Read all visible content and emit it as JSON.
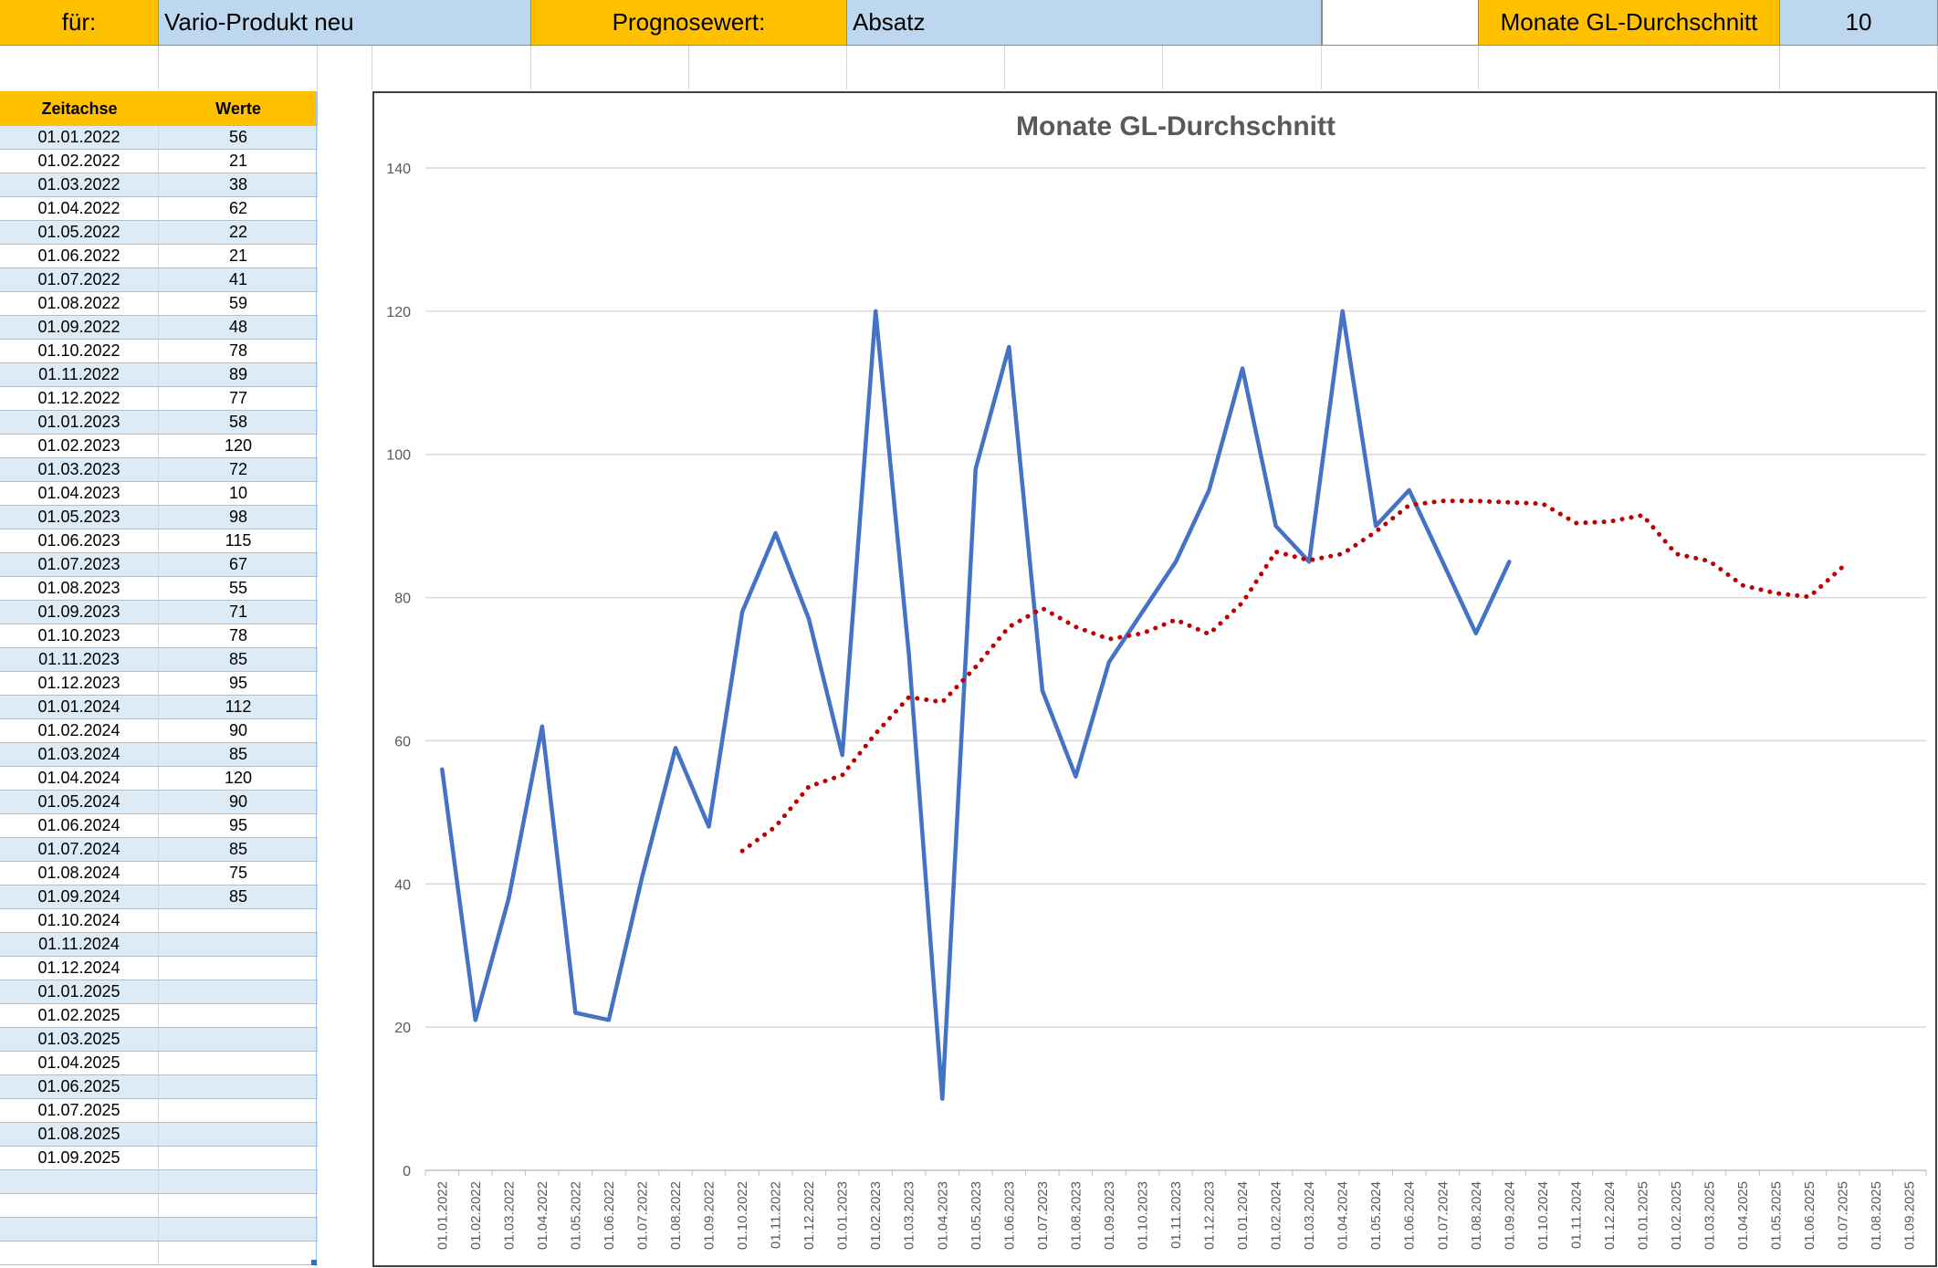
{
  "header": {
    "fuer_label": "für:",
    "product_value": "Vario-Produkt neu",
    "prognose_label": "Prognosewert:",
    "prognose_value": "Absatz",
    "months_label": "Monate GL-Durchschnitt",
    "months_value": "10"
  },
  "table": {
    "col_time": "Zeitachse",
    "col_values": "Werte",
    "rows": [
      {
        "date": "01.01.2022",
        "value": "56"
      },
      {
        "date": "01.02.2022",
        "value": "21"
      },
      {
        "date": "01.03.2022",
        "value": "38"
      },
      {
        "date": "01.04.2022",
        "value": "62"
      },
      {
        "date": "01.05.2022",
        "value": "22"
      },
      {
        "date": "01.06.2022",
        "value": "21"
      },
      {
        "date": "01.07.2022",
        "value": "41"
      },
      {
        "date": "01.08.2022",
        "value": "59"
      },
      {
        "date": "01.09.2022",
        "value": "48"
      },
      {
        "date": "01.10.2022",
        "value": "78"
      },
      {
        "date": "01.11.2022",
        "value": "89"
      },
      {
        "date": "01.12.2022",
        "value": "77"
      },
      {
        "date": "01.01.2023",
        "value": "58"
      },
      {
        "date": "01.02.2023",
        "value": "120"
      },
      {
        "date": "01.03.2023",
        "value": "72"
      },
      {
        "date": "01.04.2023",
        "value": "10"
      },
      {
        "date": "01.05.2023",
        "value": "98"
      },
      {
        "date": "01.06.2023",
        "value": "115"
      },
      {
        "date": "01.07.2023",
        "value": "67"
      },
      {
        "date": "01.08.2023",
        "value": "55"
      },
      {
        "date": "01.09.2023",
        "value": "71"
      },
      {
        "date": "01.10.2023",
        "value": "78"
      },
      {
        "date": "01.11.2023",
        "value": "85"
      },
      {
        "date": "01.12.2023",
        "value": "95"
      },
      {
        "date": "01.01.2024",
        "value": "112"
      },
      {
        "date": "01.02.2024",
        "value": "90"
      },
      {
        "date": "01.03.2024",
        "value": "85"
      },
      {
        "date": "01.04.2024",
        "value": "120"
      },
      {
        "date": "01.05.2024",
        "value": "90"
      },
      {
        "date": "01.06.2024",
        "value": "95"
      },
      {
        "date": "01.07.2024",
        "value": "85"
      },
      {
        "date": "01.08.2024",
        "value": "75"
      },
      {
        "date": "01.09.2024",
        "value": "85"
      },
      {
        "date": "01.10.2024",
        "value": ""
      },
      {
        "date": "01.11.2024",
        "value": ""
      },
      {
        "date": "01.12.2024",
        "value": ""
      },
      {
        "date": "01.01.2025",
        "value": ""
      },
      {
        "date": "01.02.2025",
        "value": ""
      },
      {
        "date": "01.03.2025",
        "value": ""
      },
      {
        "date": "01.04.2025",
        "value": ""
      },
      {
        "date": "01.06.2025",
        "value": ""
      },
      {
        "date": "01.07.2025",
        "value": ""
      },
      {
        "date": "01.08.2025",
        "value": ""
      },
      {
        "date": "01.09.2025",
        "value": ""
      },
      {
        "date": "",
        "value": ""
      },
      {
        "date": "",
        "value": ""
      },
      {
        "date": "",
        "value": ""
      },
      {
        "date": "",
        "value": ""
      }
    ]
  },
  "colors": {
    "header_orange": "#FFC000",
    "header_blue": "#BDD7EE",
    "row_band": "#DDEBF7",
    "series_line": "#4472C4",
    "trend_line": "#C00000",
    "gridline": "#D9D9D9",
    "axis_text": "#595959"
  },
  "chart_data": {
    "type": "line",
    "title": "Monate GL-Durchschnitt",
    "xlabel": "",
    "ylabel": "",
    "ylim": [
      0,
      140
    ],
    "yticks": [
      "0",
      "20",
      "40",
      "60",
      "80",
      "100",
      "120",
      "140"
    ],
    "grid": true,
    "legend": "none",
    "categories": [
      "01.01.2022",
      "01.02.2022",
      "01.03.2022",
      "01.04.2022",
      "01.05.2022",
      "01.06.2022",
      "01.07.2022",
      "01.08.2022",
      "01.09.2022",
      "01.10.2022",
      "01.11.2022",
      "01.12.2022",
      "01.01.2023",
      "01.02.2023",
      "01.03.2023",
      "01.04.2023",
      "01.05.2023",
      "01.06.2023",
      "01.07.2023",
      "01.08.2023",
      "01.09.2023",
      "01.10.2023",
      "01.11.2023",
      "01.12.2023",
      "01.01.2024",
      "01.02.2024",
      "01.03.2024",
      "01.04.2024",
      "01.05.2024",
      "01.06.2024",
      "01.07.2024",
      "01.08.2024",
      "01.09.2024",
      "01.10.2024",
      "01.11.2024",
      "01.12.2024",
      "01.01.2025",
      "01.02.2025",
      "01.03.2025",
      "01.04.2025",
      "01.05.2025",
      "01.06.2025",
      "01.07.2025",
      "01.08.2025",
      "01.09.2025"
    ],
    "series": [
      {
        "style": "solid",
        "values": [
          56,
          21,
          38,
          62,
          22,
          21,
          41,
          59,
          48,
          78,
          89,
          77,
          58,
          120,
          72,
          10,
          98,
          115,
          67,
          55,
          71,
          78,
          85,
          95,
          112,
          90,
          85,
          120,
          90,
          95,
          85,
          75,
          85,
          null,
          null,
          null,
          null,
          null,
          null,
          null,
          null,
          null,
          null,
          null,
          null
        ]
      },
      {
        "style": "dotted",
        "values": [
          null,
          null,
          null,
          null,
          null,
          null,
          null,
          null,
          null,
          44.6,
          48.0,
          53.6,
          55.2,
          61.0,
          66.1,
          65.4,
          70.3,
          75.9,
          78.5,
          75.9,
          74.2,
          75.0,
          76.9,
          74.9,
          79.3,
          86.4,
          85.2,
          86.1,
          89.2,
          92.9,
          93.5,
          93.5,
          93.3,
          93.1,
          90.4,
          90.6,
          91.5,
          86.1,
          85.1,
          81.7,
          80.6,
          80.1,
          84.3,
          null,
          null
        ]
      }
    ]
  }
}
